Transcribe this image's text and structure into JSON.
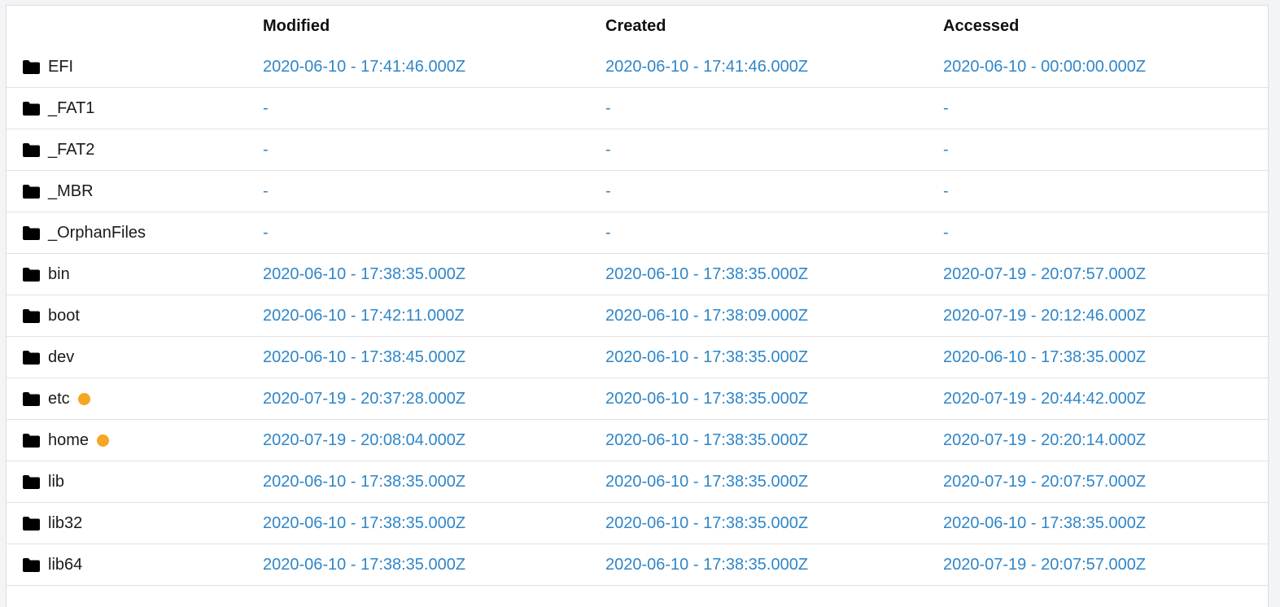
{
  "columns": {
    "modified": "Modified",
    "created": "Created",
    "accessed": "Accessed"
  },
  "colors": {
    "link": "#2f86c9",
    "marker": "#f5a623",
    "icon": "#000000"
  },
  "rows": [
    {
      "name": "EFI",
      "marked": false,
      "modified": "2020-06-10 - 17:41:46.000Z",
      "created": "2020-06-10 - 17:41:46.000Z",
      "accessed": "2020-06-10 - 00:00:00.000Z"
    },
    {
      "name": "_FAT1",
      "marked": false,
      "modified": "-",
      "created": "-",
      "accessed": "-"
    },
    {
      "name": "_FAT2",
      "marked": false,
      "modified": "-",
      "created": "-",
      "accessed": "-"
    },
    {
      "name": "_MBR",
      "marked": false,
      "modified": "-",
      "created": "-",
      "accessed": "-"
    },
    {
      "name": "_OrphanFiles",
      "marked": false,
      "modified": "-",
      "created": "-",
      "accessed": "-"
    },
    {
      "name": "bin",
      "marked": false,
      "modified": "2020-06-10 - 17:38:35.000Z",
      "created": "2020-06-10 - 17:38:35.000Z",
      "accessed": "2020-07-19 - 20:07:57.000Z"
    },
    {
      "name": "boot",
      "marked": false,
      "modified": "2020-06-10 - 17:42:11.000Z",
      "created": "2020-06-10 - 17:38:09.000Z",
      "accessed": "2020-07-19 - 20:12:46.000Z"
    },
    {
      "name": "dev",
      "marked": false,
      "modified": "2020-06-10 - 17:38:45.000Z",
      "created": "2020-06-10 - 17:38:35.000Z",
      "accessed": "2020-06-10 - 17:38:35.000Z"
    },
    {
      "name": "etc",
      "marked": true,
      "modified": "2020-07-19 - 20:37:28.000Z",
      "created": "2020-06-10 - 17:38:35.000Z",
      "accessed": "2020-07-19 - 20:44:42.000Z"
    },
    {
      "name": "home",
      "marked": true,
      "modified": "2020-07-19 - 20:08:04.000Z",
      "created": "2020-06-10 - 17:38:35.000Z",
      "accessed": "2020-07-19 - 20:20:14.000Z"
    },
    {
      "name": "lib",
      "marked": false,
      "modified": "2020-06-10 - 17:38:35.000Z",
      "created": "2020-06-10 - 17:38:35.000Z",
      "accessed": "2020-07-19 - 20:07:57.000Z"
    },
    {
      "name": "lib32",
      "marked": false,
      "modified": "2020-06-10 - 17:38:35.000Z",
      "created": "2020-06-10 - 17:38:35.000Z",
      "accessed": "2020-06-10 - 17:38:35.000Z"
    },
    {
      "name": "lib64",
      "marked": false,
      "modified": "2020-06-10 - 17:38:35.000Z",
      "created": "2020-06-10 - 17:38:35.000Z",
      "accessed": "2020-07-19 - 20:07:57.000Z"
    }
  ]
}
